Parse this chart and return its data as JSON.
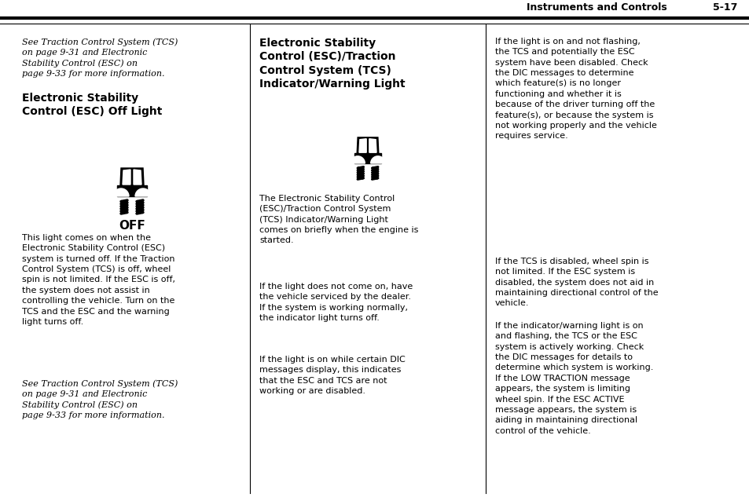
{
  "bg_color": "#ffffff",
  "header_text": "Instruments and Controls",
  "header_number": "5-17",
  "col1_intro": "See Traction Control System (TCS)\non page 9-31 and Electronic\nStability Control (ESC) on\npage 9-33 for more information.",
  "col1_heading": "Electronic Stability\nControl (ESC) Off Light",
  "col1_body": "This light comes on when the\nElectronic Stability Control (ESC)\nsystem is turned off. If the Traction\nControl System (TCS) is off, wheel\nspin is not limited. If the ESC is off,\nthe system does not assist in\ncontrolling the vehicle. Turn on the\nTCS and the ESC and the warning\nlight turns off.",
  "col1_footer": "See Traction Control System (TCS)\non page 9-31 and Electronic\nStability Control (ESC) on\npage 9-33 for more information.",
  "col2_heading": "Electronic Stability\nControl (ESC)/Traction\nControl System (TCS)\nIndicator/Warning Light",
  "col2_body1": "The Electronic Stability Control\n(ESC)/Traction Control System\n(TCS) Indicator/Warning Light\ncomes on briefly when the engine is\nstarted.",
  "col2_body2": "If the light does not come on, have\nthe vehicle serviced by the dealer.\nIf the system is working normally,\nthe indicator light turns off.",
  "col2_body3": "If the light is on while certain DIC\nmessages display, this indicates\nthat the ESC and TCS are not\nworking or are disabled.",
  "col3_body1": "If the light is on and not flashing,\nthe TCS and potentially the ESC\nsystem have been disabled. Check\nthe DIC messages to determine\nwhich feature(s) is no longer\nfunctioning and whether it is\nbecause of the driver turning off the\nfeature(s), or because the system is\nnot working properly and the vehicle\nrequires service.",
  "col3_body2": "If the TCS is disabled, wheel spin is\nnot limited. If the ESC system is\ndisabled, the system does not aid in\nmaintaining directional control of the\nvehicle.",
  "col3_body3": "If the indicator/warning light is on\nand flashing, the TCS or the ESC\nsystem is actively working. Check\nthe DIC messages for details to\ndetermine which system is working.\nIf the LOW TRACTION message\nappears, the system is limiting\nwheel spin. If the ESC ACTIVE\nmessage appears, the system is\naiding in maintaining directional\ncontrol of the vehicle."
}
